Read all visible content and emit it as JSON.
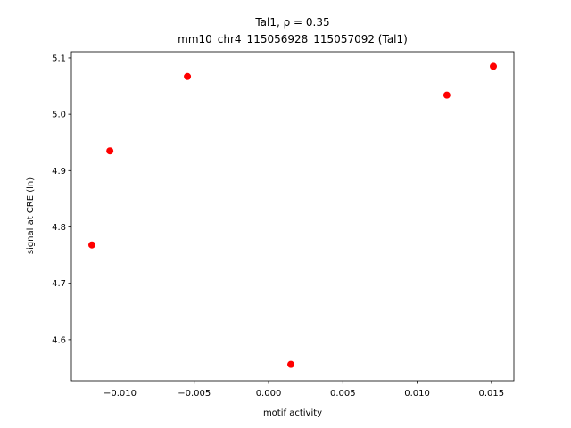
{
  "chart_data": {
    "type": "scatter",
    "title": "Tal1, ρ = 0.35",
    "subtitle": "mm10_chr4_115056928_115057092 (Tal1)",
    "x_label": "motif activity",
    "y_label": "signal at CRE (ln)",
    "color": "#ff0000",
    "x": [
      -0.01189,
      -0.01068,
      -0.00546,
      0.0015,
      0.012,
      0.01513
    ],
    "values": [
      4.768,
      4.935,
      5.067,
      4.556,
      5.034,
      5.085
    ],
    "xlim": [
      -0.01327,
      0.01651
    ],
    "ylim": [
      4.527,
      5.111
    ],
    "xticks": [
      {
        "value": -0.01,
        "label": "−0.010"
      },
      {
        "value": -0.005,
        "label": "−0.005"
      },
      {
        "value": 0,
        "label": "0.000"
      },
      0.005,
      {
        "value": 0.01,
        "label": "0.010"
      },
      0.015
    ],
    "yticks": [
      4.6,
      4.7,
      4.8,
      4.9,
      {
        "value": 5.0,
        "label": "5.0"
      },
      5.1
    ],
    "grid": false
  }
}
